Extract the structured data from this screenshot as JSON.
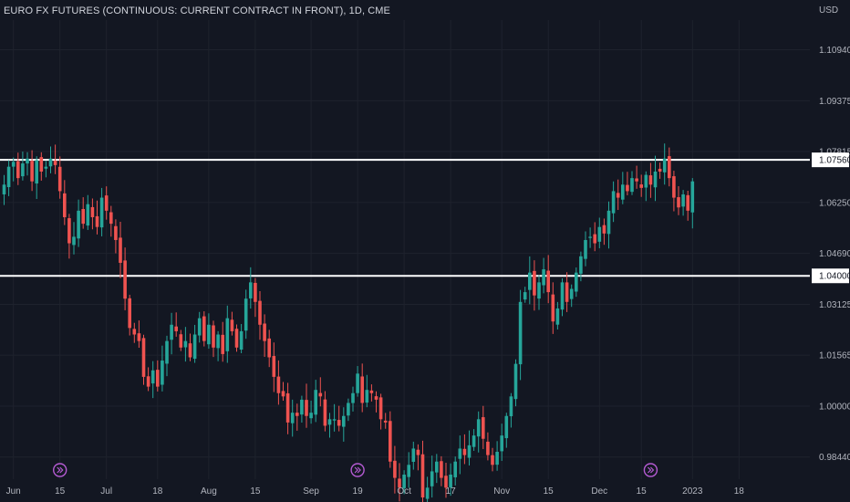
{
  "header": {
    "title": "EURO FX FUTURES (CONTINUOUS: CURRENT CONTRACT IN FRONT), 1D, CME",
    "currency": "USD"
  },
  "chart_data": {
    "type": "candlestick",
    "y_ticks": [
      "1.10940",
      "1.09375",
      "1.07815",
      "1.06250",
      "1.04690",
      "1.03125",
      "1.01565",
      "1.00000",
      "0.98440"
    ],
    "y_tick_values": [
      1.1094,
      1.09375,
      1.07815,
      1.0625,
      1.0469,
      1.03125,
      1.01565,
      1.0,
      0.9844
    ],
    "ylim": [
      0.9776,
      1.1185
    ],
    "x_ticks": [
      {
        "label": "Jun",
        "index": 2
      },
      {
        "label": "15",
        "index": 12
      },
      {
        "label": "Jul",
        "index": 22
      },
      {
        "label": "18",
        "index": 33
      },
      {
        "label": "Aug",
        "index": 44
      },
      {
        "label": "15",
        "index": 54
      },
      {
        "label": "Sep",
        "index": 66
      },
      {
        "label": "19",
        "index": 76
      },
      {
        "label": "Oct",
        "index": 86
      },
      {
        "label": "17",
        "index": 96
      },
      {
        "label": "Nov",
        "index": 107
      },
      {
        "label": "15",
        "index": 117
      },
      {
        "label": "Dec",
        "index": 128
      },
      {
        "label": "15",
        "index": 137
      },
      {
        "label": "2023",
        "index": 148
      },
      {
        "label": "18",
        "index": 158
      }
    ],
    "levels": [
      {
        "value": 1.0756,
        "label": "1.07560"
      },
      {
        "value": 1.04,
        "label": "1.04000"
      }
    ],
    "event_markers": [
      12,
      76,
      139
    ],
    "up_color": "#26a69a",
    "down_color": "#ef5350",
    "closes": [
      1.068,
      1.0735,
      1.075,
      1.07,
      1.0745,
      1.076,
      1.069,
      1.0755,
      1.072,
      1.0735,
      1.076,
      1.074,
      1.066,
      1.058,
      1.05,
      1.052,
      1.06,
      1.056,
      1.062,
      1.058,
      1.055,
      1.064,
      1.06,
      1.056,
      1.051,
      1.044,
      1.033,
      1.024,
      1.022,
      1.02,
      1.009,
      1.006,
      1.011,
      1.006,
      1.014,
      1.02,
      1.025,
      1.023,
      1.018,
      1.02,
      1.015,
      1.022,
      1.027,
      1.02,
      1.025,
      1.018,
      1.022,
      1.016,
      1.027,
      1.023,
      1.018,
      1.023,
      1.033,
      1.038,
      1.032,
      1.025,
      1.02,
      1.015,
      1.009,
      1.004,
      1.003,
      0.995,
      0.998,
      0.997,
      1.002,
      0.997,
      0.998,
      1.005,
      1.003,
      0.994,
      0.996,
      0.996,
      0.994,
      0.997,
      1.001,
      1.004,
      1.01,
      1.001,
      1.005,
      1.004,
      1.002,
      0.996,
      0.995,
      0.983,
      0.978,
      0.975,
      0.979,
      0.982,
      0.987,
      0.985,
      0.972,
      0.975,
      0.98,
      0.983,
      0.978,
      0.975,
      0.979,
      0.983,
      0.987,
      0.985,
      0.988,
      0.991,
      0.996,
      0.99,
      0.985,
      0.982,
      0.986,
      0.991,
      0.997,
      1.003,
      1.013,
      1.032,
      1.035,
      1.041,
      1.034,
      1.038,
      1.042,
      1.035,
      1.026,
      1.03,
      1.038,
      1.032,
      1.036,
      1.041,
      1.046,
      1.051,
      1.052,
      1.05,
      1.055,
      1.053,
      1.06,
      1.066,
      1.064,
      1.068,
      1.066,
      1.07,
      1.069,
      1.067,
      1.071,
      1.068,
      1.072,
      1.072,
      1.076,
      1.07,
      1.064,
      1.061,
      1.065,
      1.06,
      1.069
    ],
    "price_min": 0.97,
    "price_max": 1.077
  },
  "colors": {
    "background": "#131722",
    "grid": "#1e222d",
    "level_line": "#ffffff",
    "marker": "#b55bd3"
  }
}
